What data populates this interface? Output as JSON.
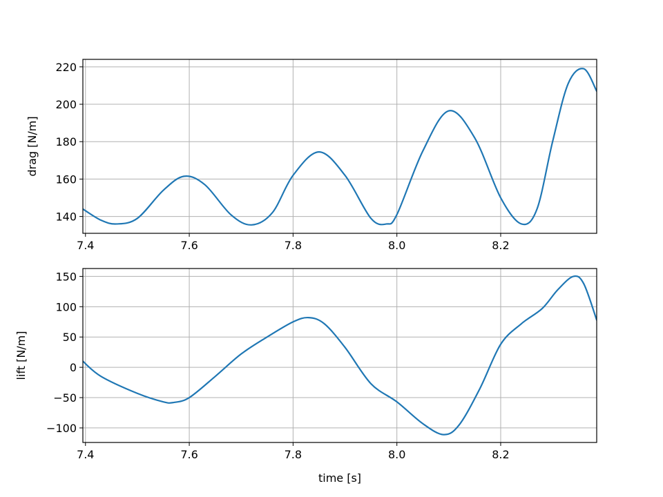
{
  "chart_data": [
    {
      "type": "line",
      "title": "",
      "xlabel": "",
      "ylabel": "drag [N/m]",
      "xlim": [
        7.395,
        8.385
      ],
      "ylim": [
        131,
        224
      ],
      "xticks": [
        7.4,
        7.6,
        7.8,
        8.0,
        8.2
      ],
      "xtick_labels": [
        "7.4",
        "7.6",
        "7.8",
        "8.0",
        "8.2"
      ],
      "yticks": [
        140,
        160,
        180,
        200,
        220
      ],
      "ytick_labels": [
        "140",
        "160",
        "180",
        "200",
        "220"
      ],
      "grid": true,
      "color": "#1f77b4",
      "series": [
        {
          "x": [
            7.395,
            7.43,
            7.46,
            7.5,
            7.55,
            7.59,
            7.63,
            7.68,
            7.72,
            7.76,
            7.8,
            7.85,
            7.9,
            7.95,
            7.98,
            8.0,
            8.05,
            8.1,
            8.15,
            8.2,
            8.24,
            8.27,
            8.3,
            8.33,
            8.36,
            8.385
          ],
          "y": [
            144,
            138,
            136,
            139,
            154,
            161.5,
            157,
            141,
            135.5,
            142,
            162,
            174.5,
            162,
            139,
            136,
            141,
            175,
            196.5,
            182,
            150,
            136,
            144,
            180,
            211,
            219,
            207
          ]
        }
      ]
    },
    {
      "type": "line",
      "title": "",
      "xlabel": "time [s]",
      "ylabel": "lift [N/m]",
      "xlim": [
        7.395,
        8.385
      ],
      "ylim": [
        -124,
        163
      ],
      "xticks": [
        7.4,
        7.6,
        7.8,
        8.0,
        8.2
      ],
      "xtick_labels": [
        "7.4",
        "7.6",
        "7.8",
        "8.0",
        "8.2"
      ],
      "yticks": [
        -100,
        -50,
        0,
        50,
        100,
        150
      ],
      "ytick_labels": [
        "−100",
        "−50",
        "0",
        "50",
        "100",
        "150"
      ],
      "grid": true,
      "color": "#1f77b4",
      "series": [
        {
          "x": [
            7.395,
            7.43,
            7.5,
            7.55,
            7.57,
            7.6,
            7.65,
            7.7,
            7.75,
            7.8,
            7.83,
            7.86,
            7.9,
            7.95,
            8.0,
            8.05,
            8.09,
            8.12,
            8.16,
            8.2,
            8.24,
            8.28,
            8.31,
            8.34,
            8.36,
            8.385
          ],
          "y": [
            10,
            -15,
            -43,
            -57,
            -58,
            -50,
            -15,
            22,
            50,
            75,
            82,
            72,
            33,
            -27,
            -57,
            -93,
            -111,
            -95,
            -35,
            38,
            72,
            97,
            128,
            150,
            138,
            78
          ]
        }
      ]
    }
  ]
}
